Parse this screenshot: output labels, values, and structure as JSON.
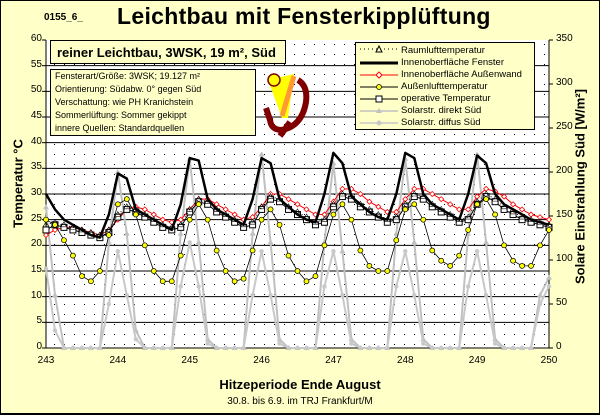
{
  "header": {
    "code": "0155_6_",
    "title": "Leichtbau mit Fensterkipplüftung"
  },
  "info_box": {
    "heading": "reiner Leichtbau, 3WSK, 19 m², Süd",
    "lines": [
      "Fensterart/Größe: 3WSK; 19.127 m²",
      " Orientierung: Südabw. 0° gegen Süd",
      "Verschattung: wie PH Kranichstein",
      " Sommerlüftung: Sommer gekippt",
      "innere Quellen: Standardquellen"
    ]
  },
  "logo": {
    "name": "phpp-logo-icon"
  },
  "colors": {
    "background": "#ffffc8",
    "raumluft": "#000000",
    "fenster": "#000000",
    "aussenwand": "#ff0000",
    "aussenluft": "#ffff00",
    "operative": "#000000",
    "solar_direkt": "#c0c0c0",
    "solar_diffus": "#c8c8c8"
  },
  "chart_data": {
    "type": "line",
    "title": "Leichtbau mit Fensterkipplüftung",
    "xlabel": "Hitzeperiode Ende August",
    "xsublabel": "30.8. bis 6.9. im TRJ Frankfurt/M",
    "ylabel": "Temperatur °C",
    "y2label": "Solare Einstrahlung Süd [W/m²]",
    "xlim": [
      243,
      250
    ],
    "ylim": [
      0,
      60
    ],
    "y2lim": [
      0,
      350
    ],
    "xticks": [
      "243",
      "244",
      "245",
      "246",
      "247",
      "248",
      "249",
      "250"
    ],
    "yticks": [
      "0",
      "5",
      "10",
      "15",
      "20",
      "25",
      "30",
      "35",
      "40",
      "45",
      "50",
      "55",
      "60"
    ],
    "y2ticks": [
      "0",
      "50",
      "100",
      "150",
      "200",
      "250",
      "300",
      "350"
    ],
    "grid": true,
    "legend_position": "top-right",
    "x": [
      243.0,
      243.125,
      243.25,
      243.375,
      243.5,
      243.625,
      243.75,
      243.875,
      244.0,
      244.125,
      244.25,
      244.375,
      244.5,
      244.625,
      244.75,
      244.875,
      245.0,
      245.125,
      245.25,
      245.375,
      245.5,
      245.625,
      245.75,
      245.875,
      246.0,
      246.125,
      246.25,
      246.375,
      246.5,
      246.625,
      246.75,
      246.875,
      247.0,
      247.125,
      247.25,
      247.375,
      247.5,
      247.625,
      247.75,
      247.875,
      248.0,
      248.125,
      248.25,
      248.375,
      248.5,
      248.625,
      248.75,
      248.875,
      249.0,
      249.125,
      249.25,
      249.375,
      249.5,
      249.625,
      249.75,
      249.875,
      250.0
    ],
    "series": [
      {
        "name": "Raumlufttemperatur",
        "axis": "left",
        "values": [
          24,
          24.5,
          24,
          23.5,
          23,
          22.5,
          22,
          23,
          26,
          27.5,
          27,
          26,
          25,
          24,
          23.5,
          24,
          27,
          29,
          28.5,
          27,
          26,
          25,
          24,
          24.5,
          27.5,
          29.5,
          29,
          27.5,
          26.5,
          25.5,
          24.5,
          25,
          28,
          30,
          29.5,
          28,
          27,
          26,
          25,
          25.5,
          28,
          30,
          29.5,
          28,
          27,
          26,
          25,
          25.5,
          28.5,
          30,
          29,
          27.5,
          26.5,
          25.5,
          25,
          24.5,
          24
        ]
      },
      {
        "name": "Innenoberfläche Fenster",
        "axis": "left",
        "values": [
          30,
          27,
          25,
          24,
          23,
          22,
          21.5,
          26,
          34,
          33,
          27,
          26,
          25,
          24,
          23,
          28,
          37,
          36.5,
          29,
          27,
          26,
          25,
          24,
          29,
          37,
          36,
          29,
          27.5,
          26,
          25,
          24.5,
          30,
          38,
          36,
          29.5,
          28,
          26.5,
          25.5,
          25,
          30,
          38,
          37,
          30,
          28,
          27,
          26,
          25,
          30,
          37.5,
          36,
          30,
          28,
          27,
          26,
          25,
          24.5,
          24
        ]
      },
      {
        "name": "Innenoberfläche Außenwand",
        "axis": "left",
        "values": [
          22,
          23,
          23.5,
          23.5,
          23,
          22.5,
          22,
          23,
          25,
          27,
          27.5,
          27,
          26,
          25,
          24.5,
          25,
          27,
          29,
          29,
          28,
          27,
          26,
          25,
          25.5,
          27.5,
          30,
          30,
          29,
          28,
          27,
          26,
          26,
          28.5,
          31,
          31,
          30,
          28.5,
          27.5,
          26.5,
          26.5,
          29,
          31,
          31,
          30,
          29,
          28,
          27,
          27,
          29.5,
          31,
          30.5,
          29.5,
          28,
          27,
          26,
          25.5,
          25
        ]
      },
      {
        "name": "Außenlufttemperatur",
        "axis": "left",
        "values": [
          25,
          24,
          21,
          18,
          14,
          13,
          15,
          22,
          28,
          29,
          26,
          20,
          15,
          13,
          13,
          18,
          25,
          28,
          25,
          19,
          15,
          13,
          13.5,
          19,
          25,
          27,
          24,
          18,
          15,
          13,
          14,
          20,
          26,
          28,
          25,
          19,
          16,
          15,
          15,
          21,
          27,
          28,
          25,
          19,
          17,
          16,
          18,
          23,
          28,
          29,
          26,
          20,
          17,
          16,
          16,
          20,
          23
        ]
      },
      {
        "name": "operative Temperatur",
        "axis": "left",
        "values": [
          23,
          24,
          23.5,
          23,
          22.5,
          22,
          21.5,
          22.5,
          25.5,
          27,
          26.5,
          25.5,
          24.5,
          23.5,
          23,
          23.5,
          26.5,
          28.5,
          28,
          26.5,
          25.5,
          24.5,
          23.5,
          24,
          27,
          29,
          28.5,
          27,
          26,
          25,
          24,
          24.5,
          27.5,
          29.5,
          29,
          27.5,
          26.5,
          25.5,
          24.5,
          25,
          27.5,
          29.5,
          29,
          27.5,
          26.5,
          25.5,
          24.5,
          25,
          28,
          29.5,
          28.5,
          27,
          26,
          25,
          24.5,
          24,
          23.5
        ]
      },
      {
        "name": "Solarstr. direkt Süd",
        "axis": "right",
        "values": [
          160,
          60,
          0,
          0,
          0,
          0,
          0,
          120,
          200,
          130,
          20,
          0,
          0,
          0,
          0,
          130,
          215,
          120,
          10,
          0,
          0,
          0,
          0,
          130,
          220,
          120,
          10,
          0,
          0,
          0,
          0,
          120,
          210,
          110,
          10,
          0,
          0,
          0,
          0,
          130,
          215,
          120,
          10,
          0,
          0,
          0,
          0,
          130,
          220,
          120,
          10,
          0,
          0,
          0,
          0,
          60,
          80
        ]
      },
      {
        "name": "Solarstr. diffus Süd",
        "axis": "right",
        "values": [
          90,
          20,
          0,
          0,
          0,
          0,
          0,
          50,
          110,
          60,
          10,
          0,
          0,
          0,
          0,
          70,
          120,
          70,
          5,
          0,
          0,
          0,
          0,
          60,
          110,
          60,
          5,
          0,
          0,
          0,
          0,
          70,
          110,
          60,
          5,
          0,
          0,
          0,
          0,
          70,
          110,
          60,
          5,
          0,
          0,
          0,
          0,
          70,
          110,
          60,
          5,
          0,
          0,
          0,
          0,
          50,
          70
        ]
      }
    ]
  }
}
